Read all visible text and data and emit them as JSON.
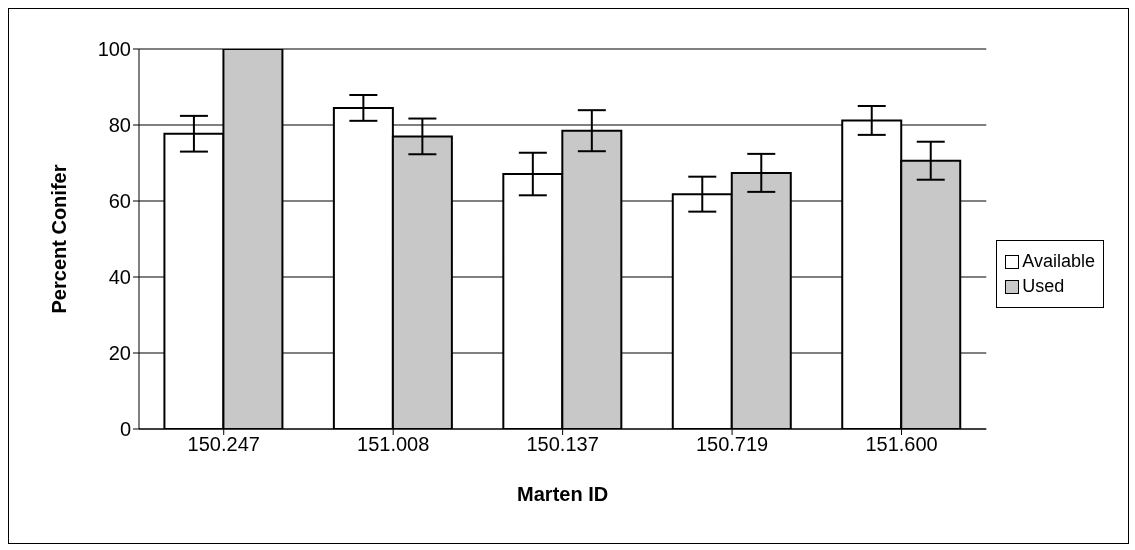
{
  "chart_data": {
    "type": "bar",
    "xlabel": "Marten ID",
    "ylabel": "Percent Conifer",
    "categories": [
      "150.247",
      "151.008",
      "150.137",
      "150.719",
      "151.600"
    ],
    "series": [
      {
        "name": "Available",
        "color": "#ffffff",
        "values": [
          77.7,
          84.5,
          67.1,
          61.8,
          81.2
        ],
        "errors": [
          4.7,
          3.4,
          5.6,
          4.6,
          3.8
        ]
      },
      {
        "name": "Used",
        "color": "#c8c8c8",
        "values": [
          100,
          77.0,
          78.5,
          67.4,
          70.6
        ],
        "errors": [
          0,
          4.7,
          5.4,
          5,
          5
        ]
      }
    ],
    "ylim": [
      0,
      100
    ],
    "yticks": [
      0,
      20,
      40,
      60,
      80,
      100
    ],
    "grid": "y",
    "legend": "right"
  }
}
